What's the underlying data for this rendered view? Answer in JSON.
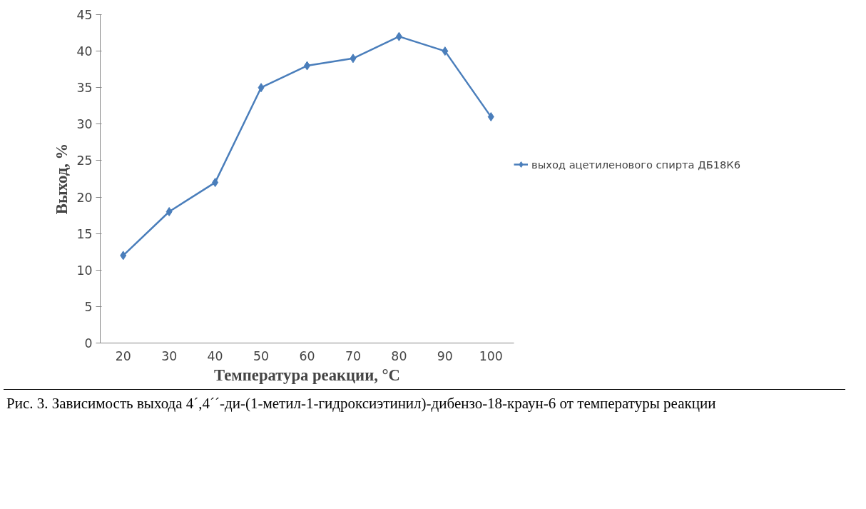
{
  "chart_data": {
    "type": "line",
    "xlabel": "Температура реакции, °С",
    "ylabel": "Выход, %",
    "categories": [
      "20",
      "30",
      "40",
      "50",
      "60",
      "70",
      "80",
      "90",
      "100"
    ],
    "series": [
      {
        "name": "выход ацетиленового спирта ДБ18К6",
        "color": "#4a7ebb",
        "values": [
          12,
          18,
          22,
          35,
          38,
          39,
          42,
          40,
          31
        ]
      }
    ],
    "ylim": [
      0,
      45
    ],
    "yticks": [
      0,
      5,
      10,
      15,
      20,
      25,
      30,
      35,
      40,
      45
    ],
    "grid": false,
    "legend": "right",
    "marker": "diamond",
    "line_style": "solid",
    "annotations": [
      "Рис. 3. Зависимость выхода  4´,4´´-ди-(1-метил-1-гидроксиэтинил)-дибензо-18-краун-6 от температуры реакции"
    ]
  }
}
